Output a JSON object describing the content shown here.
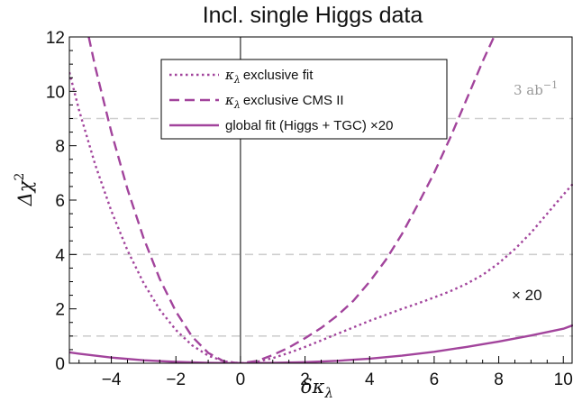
{
  "chart_data": {
    "type": "line",
    "title": "Incl. single Higgs data",
    "xlabel": "δκ",
    "xlabel_sub": "λ",
    "ylabel": "Δχ",
    "ylabel_sup": "2",
    "xlim": [
      -5.3,
      10.3
    ],
    "ylim": [
      0,
      12
    ],
    "x_ticks": [
      -4,
      -2,
      0,
      2,
      4,
      6,
      8,
      10
    ],
    "y_ticks": [
      0,
      2,
      4,
      6,
      8,
      10,
      12
    ],
    "x_tick_labels": [
      "−4",
      "−2",
      "0",
      "2",
      "4",
      "6",
      "8",
      "10"
    ],
    "y_tick_labels": [
      "0",
      "2",
      "4",
      "6",
      "8",
      "10",
      "12"
    ],
    "reference_lines_y": [
      1,
      4,
      9
    ],
    "legend_position": "top-center",
    "color": "#a2449c",
    "annotations": {
      "luminosity": "3 ab",
      "luminosity_sup": "−1",
      "scale_note": "× 20"
    },
    "series": [
      {
        "name": "κ exclusive fit",
        "name_sub": "λ",
        "style": "dotted",
        "x": [
          -5.3,
          -5,
          -4.5,
          -4,
          -3.5,
          -3,
          -2.5,
          -2,
          -1.5,
          -1,
          -0.5,
          0,
          0.5,
          1,
          1.5,
          2,
          2.5,
          3,
          3.5,
          4,
          4.5,
          5,
          5.5,
          6,
          6.5,
          7,
          7.5,
          8,
          8.5,
          9,
          9.5,
          10,
          10.3
        ],
        "y": [
          10.7,
          9.3,
          7.3,
          5.6,
          4.15,
          2.95,
          1.97,
          1.22,
          0.66,
          0.28,
          0.07,
          0.0,
          0.05,
          0.19,
          0.38,
          0.6,
          0.84,
          1.08,
          1.32,
          1.56,
          1.78,
          2.0,
          2.2,
          2.42,
          2.65,
          2.92,
          3.25,
          3.68,
          4.2,
          4.8,
          5.5,
          6.2,
          6.6
        ]
      },
      {
        "name": "κ exclusive CMS II",
        "name_sub": "λ",
        "style": "dashed",
        "x": [
          -4.7,
          -4.5,
          -4,
          -3.5,
          -3,
          -2.5,
          -2,
          -1.5,
          -1,
          -0.5,
          0,
          0.5,
          1,
          1.5,
          2,
          2.5,
          3,
          3.5,
          4,
          4.5,
          5,
          5.5,
          6,
          6.5,
          7,
          7.5,
          7.85,
          8.15
        ],
        "y": [
          12.0,
          10.9,
          8.5,
          6.4,
          4.6,
          3.1,
          1.9,
          0.98,
          0.38,
          0.06,
          0.0,
          0.08,
          0.3,
          0.58,
          0.92,
          1.3,
          1.75,
          2.3,
          3.0,
          3.8,
          4.75,
          5.85,
          7.0,
          8.3,
          9.7,
          11.1,
          12.0,
          13.0
        ]
      },
      {
        "name": "global fit (Higgs + TGC) ×20",
        "style": "solid",
        "x": [
          -5.3,
          -5,
          -4,
          -3,
          -2,
          -1,
          0,
          1,
          2,
          3,
          4,
          5,
          6,
          7,
          8,
          9,
          10,
          10.3
        ],
        "y": [
          0.4,
          0.35,
          0.21,
          0.11,
          0.05,
          0.012,
          0.0,
          0.012,
          0.04,
          0.09,
          0.17,
          0.28,
          0.42,
          0.6,
          0.8,
          1.02,
          1.27,
          1.4
        ]
      }
    ]
  }
}
